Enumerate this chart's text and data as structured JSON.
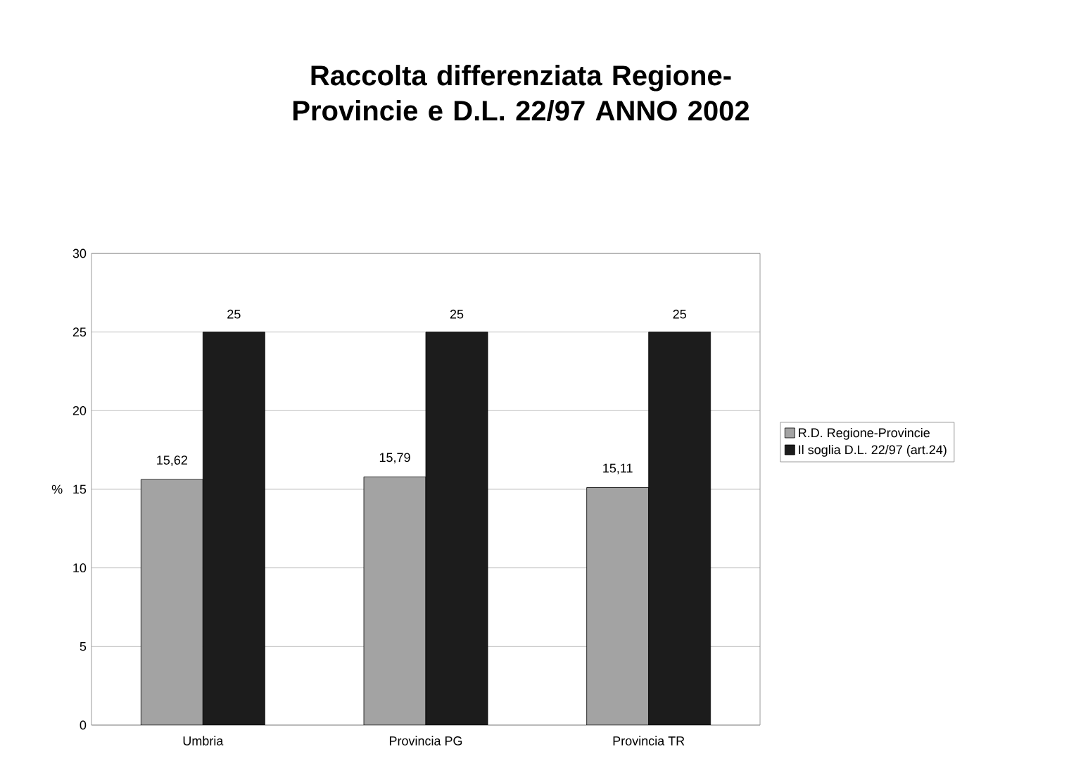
{
  "chart_data": {
    "type": "bar",
    "title": "Raccolta differenziata Regione-Provincie e D.L. 22/97  ANNO 2002",
    "ylabel": "%",
    "categories": [
      "Umbria",
      "Provincia PG",
      "Provincia TR"
    ],
    "series": [
      {
        "name": "R.D. Regione-Provincie",
        "color": "#a3a3a3",
        "values": [
          15.62,
          15.79,
          15.11
        ],
        "value_labels": [
          "15,62",
          "15,79",
          "15,11"
        ]
      },
      {
        "name": "Il soglia D.L. 22/97 (art.24)",
        "color": "#1c1c1c",
        "values": [
          25,
          25,
          25
        ],
        "value_labels": [
          "25",
          "25",
          "25"
        ]
      }
    ],
    "ylim": [
      0,
      30
    ],
    "yticks": [
      0,
      5,
      10,
      15,
      20,
      25,
      30
    ],
    "grid": "y",
    "legend": "right"
  }
}
